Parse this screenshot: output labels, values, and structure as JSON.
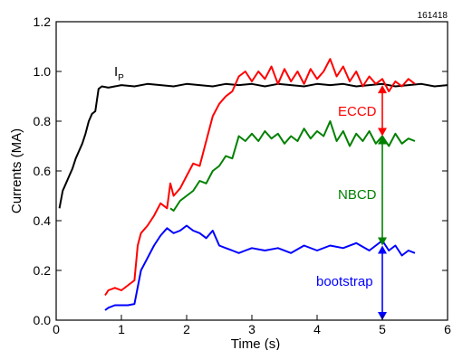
{
  "chart_data": {
    "type": "line",
    "title": "",
    "shot_number": "161418",
    "xlabel": "Time (s)",
    "ylabel": "Currents (MA)",
    "xlim": [
      0,
      6
    ],
    "ylim": [
      0,
      1.2
    ],
    "xticks": [
      0,
      1,
      2,
      3,
      4,
      5,
      6
    ],
    "xtick_labels": [
      "0",
      "1",
      "2",
      "3",
      "4",
      "5",
      "6"
    ],
    "yticks": [
      0.0,
      0.2,
      0.4,
      0.6,
      0.8,
      1.0,
      1.2
    ],
    "ytick_labels": [
      "0.0",
      "0.2",
      "0.4",
      "0.6",
      "0.8",
      "1.0",
      "1.2"
    ],
    "grid": false,
    "legend": "none",
    "series": [
      {
        "name": "I",
        "label_main": "I",
        "label_sub": "P",
        "color": "#000000",
        "x": [
          0.05,
          0.1,
          0.15,
          0.2,
          0.25,
          0.3,
          0.35,
          0.4,
          0.45,
          0.5,
          0.55,
          0.6,
          0.65,
          0.7,
          0.8,
          0.9,
          1.0,
          1.2,
          1.4,
          1.6,
          1.8,
          2.0,
          2.2,
          2.4,
          2.6,
          2.8,
          3.0,
          3.2,
          3.4,
          3.6,
          3.8,
          4.0,
          4.2,
          4.4,
          4.6,
          4.8,
          5.0,
          5.2,
          5.4,
          5.6,
          5.8,
          6.0
        ],
        "y": [
          0.45,
          0.52,
          0.55,
          0.58,
          0.61,
          0.65,
          0.68,
          0.71,
          0.75,
          0.8,
          0.83,
          0.84,
          0.93,
          0.94,
          0.935,
          0.94,
          0.945,
          0.94,
          0.95,
          0.945,
          0.94,
          0.95,
          0.945,
          0.94,
          0.95,
          0.945,
          0.95,
          0.94,
          0.95,
          0.945,
          0.94,
          0.95,
          0.945,
          0.95,
          0.94,
          0.945,
          0.95,
          0.94,
          0.945,
          0.95,
          0.94,
          0.945
        ]
      },
      {
        "name": "ECCD",
        "color": "#ff0000",
        "x": [
          0.75,
          0.8,
          0.9,
          1.0,
          1.1,
          1.2,
          1.25,
          1.3,
          1.4,
          1.5,
          1.6,
          1.7,
          1.75,
          1.8,
          1.9,
          2.0,
          2.1,
          2.2,
          2.3,
          2.4,
          2.5,
          2.6,
          2.7,
          2.8,
          2.9,
          3.0,
          3.1,
          3.2,
          3.3,
          3.4,
          3.5,
          3.6,
          3.7,
          3.8,
          3.9,
          4.0,
          4.1,
          4.2,
          4.3,
          4.4,
          4.5,
          4.6,
          4.7,
          4.8,
          4.9,
          5.0,
          5.1,
          5.2,
          5.3,
          5.4,
          5.5
        ],
        "y": [
          0.1,
          0.12,
          0.13,
          0.12,
          0.14,
          0.16,
          0.3,
          0.35,
          0.38,
          0.42,
          0.47,
          0.45,
          0.55,
          0.5,
          0.53,
          0.58,
          0.63,
          0.62,
          0.72,
          0.82,
          0.87,
          0.9,
          0.92,
          0.98,
          1.0,
          0.96,
          1.0,
          0.97,
          1.02,
          0.95,
          1.01,
          0.96,
          1.0,
          0.95,
          1.01,
          0.97,
          1.0,
          1.05,
          0.98,
          1.02,
          0.96,
          1.0,
          0.94,
          0.98,
          0.95,
          0.97,
          0.92,
          0.96,
          0.94,
          0.97,
          0.95
        ]
      },
      {
        "name": "NBCD",
        "color": "#008000",
        "x": [
          1.75,
          1.8,
          1.9,
          2.0,
          2.1,
          2.2,
          2.3,
          2.4,
          2.5,
          2.6,
          2.7,
          2.8,
          2.9,
          3.0,
          3.1,
          3.2,
          3.3,
          3.4,
          3.5,
          3.6,
          3.7,
          3.8,
          3.9,
          4.0,
          4.1,
          4.2,
          4.3,
          4.4,
          4.5,
          4.6,
          4.7,
          4.8,
          4.9,
          5.0,
          5.1,
          5.2,
          5.3,
          5.4,
          5.5
        ],
        "y": [
          0.45,
          0.44,
          0.48,
          0.5,
          0.52,
          0.56,
          0.55,
          0.6,
          0.62,
          0.66,
          0.65,
          0.74,
          0.72,
          0.75,
          0.72,
          0.76,
          0.73,
          0.75,
          0.71,
          0.74,
          0.72,
          0.77,
          0.73,
          0.76,
          0.74,
          0.8,
          0.72,
          0.76,
          0.7,
          0.75,
          0.72,
          0.76,
          0.71,
          0.74,
          0.7,
          0.75,
          0.71,
          0.73,
          0.72
        ]
      },
      {
        "name": "bootstrap",
        "color": "#0000ff",
        "x": [
          0.75,
          0.8,
          0.9,
          1.0,
          1.1,
          1.2,
          1.3,
          1.4,
          1.5,
          1.6,
          1.7,
          1.8,
          1.9,
          2.0,
          2.1,
          2.2,
          2.3,
          2.4,
          2.5,
          2.6,
          2.7,
          2.8,
          2.9,
          3.0,
          3.2,
          3.4,
          3.6,
          3.8,
          4.0,
          4.2,
          4.4,
          4.6,
          4.8,
          5.0,
          5.1,
          5.2,
          5.3,
          5.4,
          5.5
        ],
        "y": [
          0.04,
          0.05,
          0.06,
          0.06,
          0.06,
          0.065,
          0.2,
          0.25,
          0.3,
          0.34,
          0.37,
          0.35,
          0.36,
          0.38,
          0.36,
          0.35,
          0.33,
          0.36,
          0.3,
          0.29,
          0.28,
          0.27,
          0.28,
          0.29,
          0.28,
          0.29,
          0.27,
          0.3,
          0.28,
          0.3,
          0.29,
          0.31,
          0.28,
          0.32,
          0.28,
          0.3,
          0.26,
          0.28,
          0.27
        ]
      }
    ],
    "annotations": [
      {
        "text": "ECCD",
        "color": "#ff0000",
        "arrow_x": 5.0,
        "arrow_from": 0.945,
        "arrow_to": 0.74
      },
      {
        "text": "NBCD",
        "color": "#008000",
        "arrow_x": 5.0,
        "arrow_from": 0.74,
        "arrow_to": 0.3
      },
      {
        "text": "bootstrap",
        "color": "#0000ff",
        "arrow_x": 5.0,
        "arrow_from": 0.3,
        "arrow_to": 0.0
      }
    ]
  }
}
